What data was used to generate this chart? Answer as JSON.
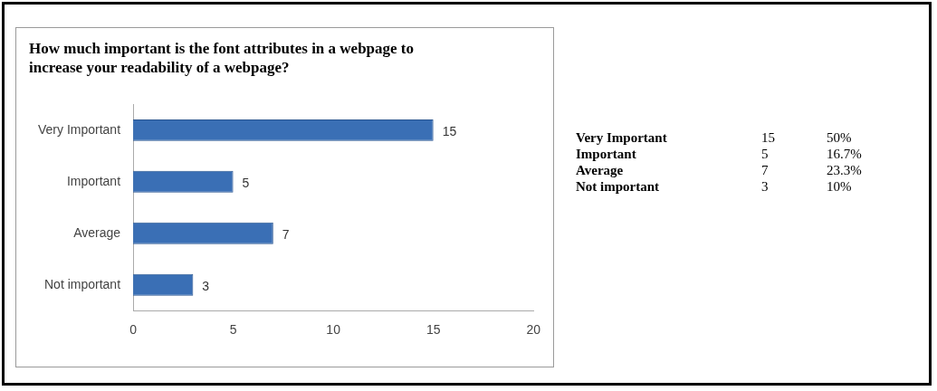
{
  "chart_data": [
    {
      "type": "bar",
      "orientation": "horizontal",
      "title": "How much important is the font attributes in a webpage to increase your readability of a webpage?",
      "categories": [
        "Very Important",
        "Important",
        "Average",
        "Not important"
      ],
      "values": [
        15,
        5,
        7,
        3
      ],
      "color": "#3a6fb5",
      "xlim": [
        0,
        20
      ],
      "xticks": [
        0,
        5,
        10,
        15,
        20
      ],
      "grid": false,
      "legend": false,
      "data_labels": true
    },
    {
      "type": "other",
      "data_labels": true,
      "categories": [
        "Very Important",
        "Important",
        "Average",
        "Not important"
      ],
      "series": [
        {
          "values": [
            15,
            5,
            7,
            3
          ]
        },
        {
          "values": [
            50,
            16.7,
            23.3,
            10
          ],
          "value_labels": [
            "50%",
            "16.7%",
            "23.3%",
            "10%"
          ]
        }
      ]
    }
  ]
}
